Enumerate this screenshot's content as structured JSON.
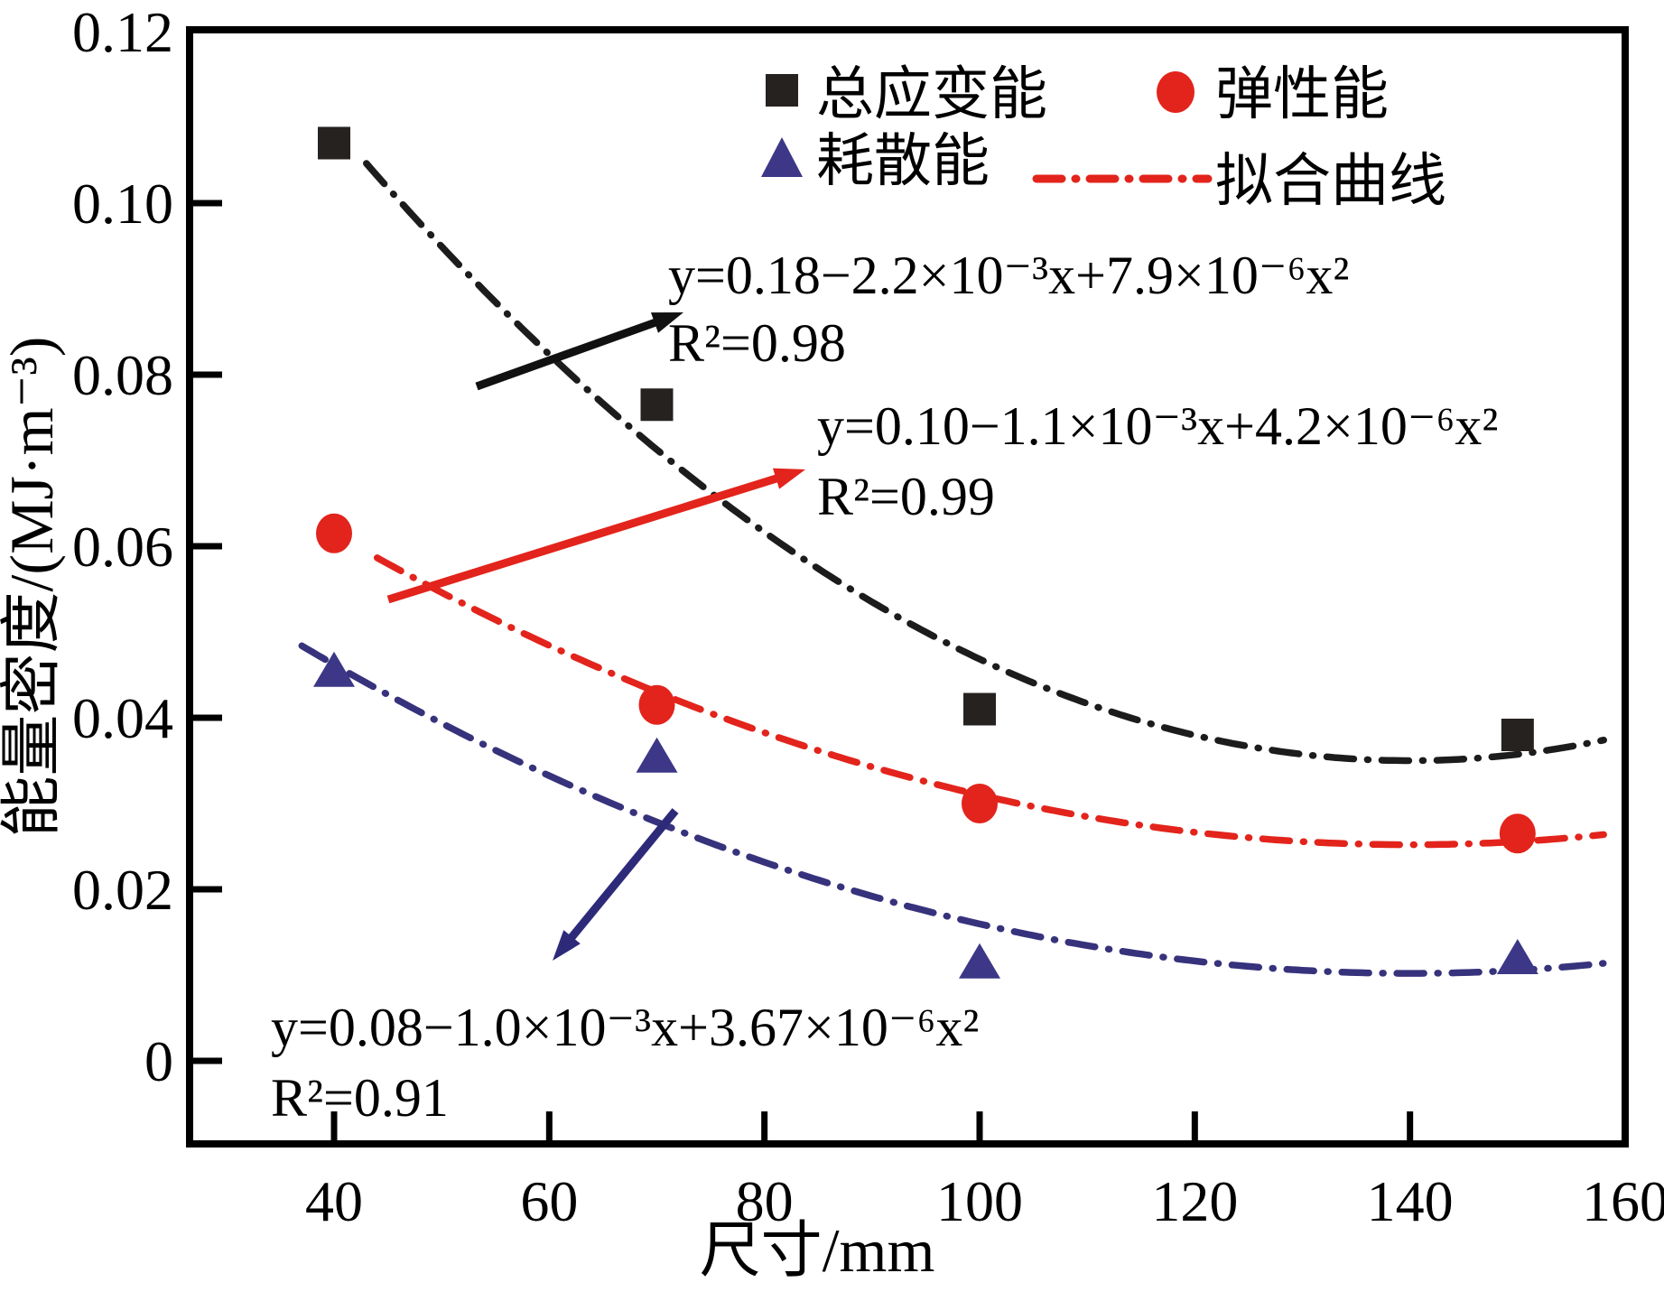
{
  "figure": {
    "x_axis": {
      "label": "尺寸/mm"
    },
    "y_axis": {
      "label": "能量密度/(MJ·m⁻³)"
    },
    "legend": {
      "items": [
        "总应变能",
        "弹性能",
        "耗散能",
        "拟合曲线"
      ]
    },
    "annotations": {
      "eq1_line1": "y=0.18−2.2×10⁻³x+7.9×10⁻⁶x²",
      "eq1_line2": "R²=0.98",
      "eq2_line1": "y=0.10−1.1×10⁻³x+4.2×10⁻⁶x²",
      "eq2_line2": "R²=0.99",
      "eq3_line1": "y=0.08−1.0×10⁻³x+3.67×10⁻⁶x²",
      "eq3_line2": "R²=0.91"
    }
  },
  "chart_data": {
    "type": "scatter",
    "title": "",
    "xlabel": "尺寸/mm",
    "ylabel": "能量密度/(MJ·m⁻³)",
    "xlim": [
      26.5,
      160
    ],
    "ylim": [
      -0.01,
      0.12
    ],
    "x_ticks": [
      40,
      60,
      80,
      100,
      120,
      140,
      160
    ],
    "x_tick_labels": [
      "40",
      "60",
      "80",
      "100",
      "120",
      "140",
      "160"
    ],
    "y_ticks": [
      0,
      0.02,
      0.04,
      0.06,
      0.08,
      0.1,
      0.12
    ],
    "y_tick_labels": [
      "0",
      "0.02",
      "0.04",
      "0.06",
      "0.08",
      "0.10",
      "0.12"
    ],
    "grid": false,
    "legend_position": "top-right-inside",
    "x": [
      40,
      70,
      100,
      150
    ],
    "series": [
      {
        "name": "总应变能",
        "marker": "square",
        "color": "#262220",
        "values": [
          0.107,
          0.0765,
          0.041,
          0.038
        ]
      },
      {
        "name": "弹性能",
        "marker": "circle",
        "color": "#e2241c",
        "values": [
          0.0615,
          0.0415,
          0.03,
          0.0265
        ]
      },
      {
        "name": "耗散能",
        "marker": "triangle",
        "color": "#3c3787",
        "values": [
          0.0455,
          0.0355,
          0.0115,
          0.012
        ]
      }
    ],
    "fit_curves": [
      {
        "series": "总应变能",
        "equation": "y=0.18−2.2×10⁻³x+7.9×10⁻⁶x²",
        "r_squared": "R²=0.98",
        "color": "#1c1c1c",
        "quad": {
          "a": 7.4e-06,
          "x0": 140,
          "c": 0.035
        },
        "x_range": [
          43,
          158
        ]
      },
      {
        "series": "弹性能",
        "equation": "y=0.10−1.1×10⁻³x+4.2×10⁻⁶x²",
        "r_squared": "R²=0.99",
        "color": "#e2241c",
        "quad": {
          "a": 3.63e-06,
          "x0": 140,
          "c": 0.0252
        },
        "x_range": [
          44,
          158
        ]
      },
      {
        "series": "耗散能",
        "equation": "y=0.08−1.0×10⁻³x+3.67×10⁻⁶x²",
        "r_squared": "R²=0.91",
        "color": "#37327c",
        "quad": {
          "a": 3.6e-06,
          "x0": 140,
          "c": 0.0102
        },
        "x_range": [
          37,
          158
        ]
      }
    ]
  }
}
